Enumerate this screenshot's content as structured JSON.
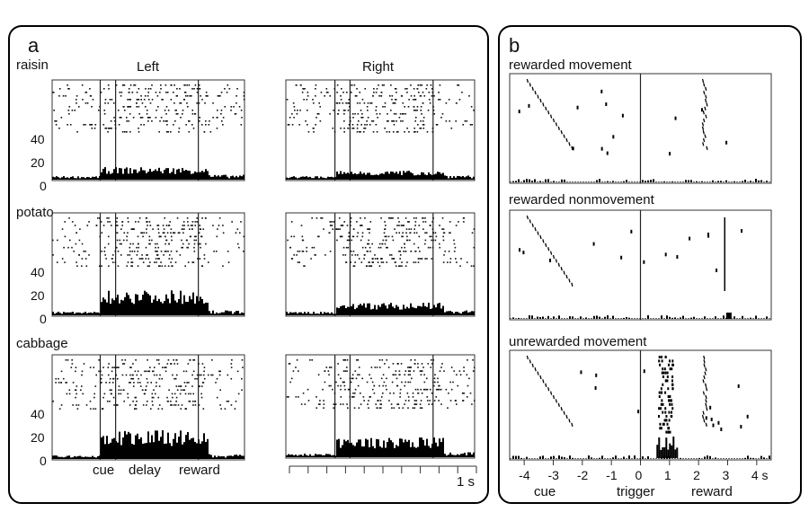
{
  "panel_a": {
    "letter": "a",
    "col_left": "Left",
    "col_right": "Right",
    "rows": [
      "raisin",
      "potato",
      "cabbage"
    ],
    "y_ticks": [
      "40",
      "20",
      "0"
    ],
    "x_labels": [
      "cue",
      "delay",
      "reward"
    ],
    "scale_label": "1 s"
  },
  "panel_b": {
    "letter": "b",
    "rows": [
      "rewarded movement",
      "rewarded nonmovement",
      "unrewarded movement"
    ],
    "x_ticks": [
      "-4",
      "-3",
      "-2",
      "-1",
      "0",
      "1",
      "2",
      "3",
      "4 s"
    ],
    "x_labels": [
      "cue",
      "trigger",
      "reward"
    ]
  },
  "chart_data": [
    {
      "type": "raster-histogram",
      "panel": "a",
      "columns": [
        "Left",
        "Right"
      ],
      "rows": [
        "raisin",
        "potato",
        "cabbage"
      ],
      "events": [
        "cue",
        "delay",
        "reward"
      ],
      "ylim": [
        0,
        40
      ],
      "y_ticks": [
        0,
        20,
        40
      ],
      "scale_bar": "1 s"
    },
    {
      "type": "raster-histogram",
      "panel": "b",
      "rows": [
        "rewarded movement",
        "rewarded nonmovement",
        "unrewarded movement"
      ],
      "xlim": [
        -4.5,
        4.5
      ],
      "x_ticks": [
        -4,
        -3,
        -2,
        -1,
        0,
        1,
        2,
        3,
        4
      ],
      "x_unit": "s",
      "events": [
        "cue",
        "trigger",
        "reward"
      ]
    }
  ]
}
